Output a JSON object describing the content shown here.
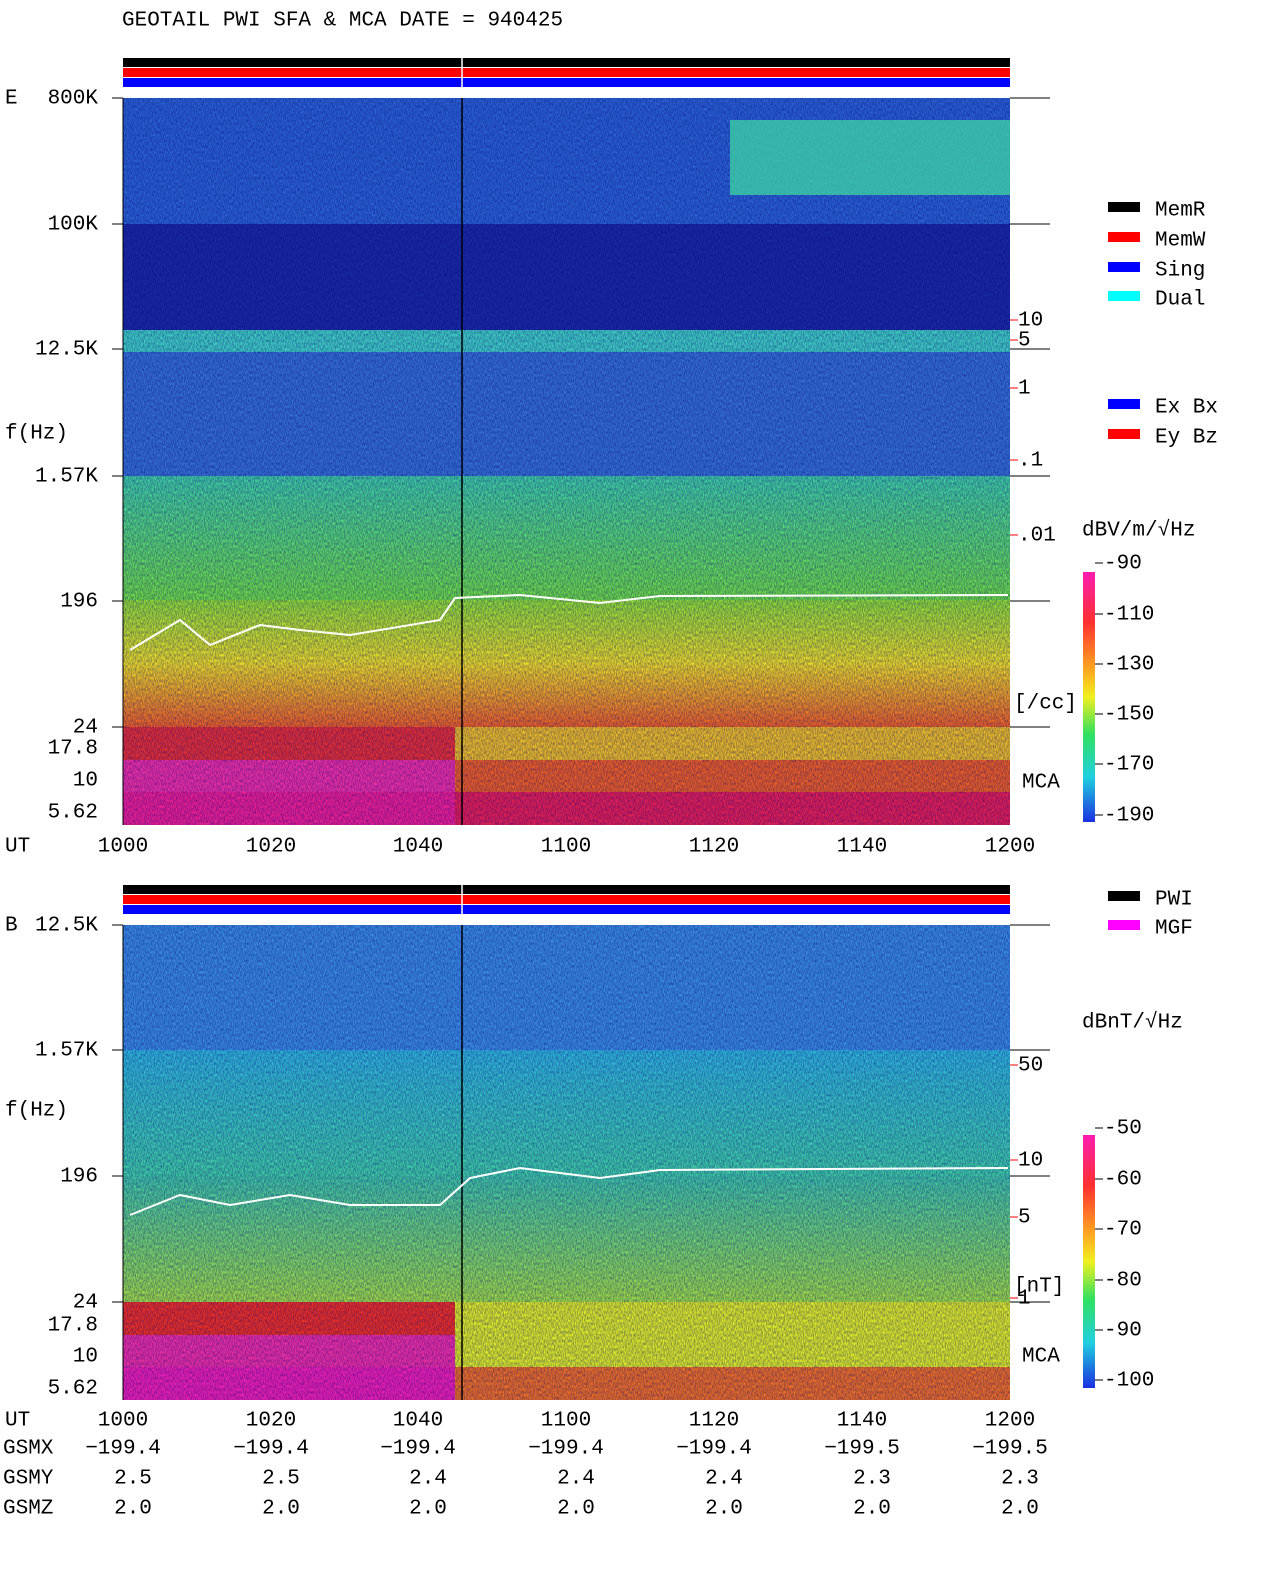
{
  "title": "GEOTAIL  PWI SFA & MCA   DATE = 940425",
  "panels": [
    {
      "label": "E",
      "y_label": "f(Hz)",
      "freq_ticks": [
        "800K",
        "100K",
        "12.5K",
        "1.57K",
        "196",
        "24",
        "17.8",
        "10",
        "5.62"
      ],
      "x_label": "UT",
      "time_ticks": [
        "1000",
        "1020",
        "1040",
        "1100",
        "1120",
        "1140",
        "1200"
      ],
      "right_ticks": [
        "10",
        "5",
        "1",
        ".1",
        ".01"
      ],
      "right_unit": "[/cc]",
      "mca_label": "MCA",
      "legend": [
        "MemR",
        "MemW",
        "Sing",
        "Dual"
      ],
      "legend2": [
        "Ex Bx",
        "Ey Bz"
      ],
      "colorbar_unit": "dBV/m/√Hz",
      "colorbar_ticks": [
        -90,
        -110,
        -130,
        -150,
        -170,
        -190
      ]
    },
    {
      "label": "B",
      "y_label": "f(Hz)",
      "freq_ticks": [
        "12.5K",
        "1.57K",
        "196",
        "24",
        "17.8",
        "10",
        "5.62"
      ],
      "x_label": "UT",
      "time_ticks": [
        "1000",
        "1020",
        "1040",
        "1100",
        "1120",
        "1140",
        "1200"
      ],
      "right_ticks": [
        "50",
        "10",
        "5",
        "1"
      ],
      "right_unit": "[nT]",
      "mca_label": "MCA",
      "legend": [
        "PWI",
        "MGF"
      ],
      "legend2": [],
      "colorbar_unit": "dBnT/√Hz",
      "colorbar_ticks": [
        -50,
        -60,
        -70,
        -80,
        -90,
        -100
      ]
    }
  ],
  "orbit": [
    {
      "label": "GSMX",
      "values": [
        "−199.4",
        "−199.4",
        "−199.4",
        "−199.4",
        "−199.4",
        "−199.5",
        "−199.5"
      ]
    },
    {
      "label": "GSMY",
      "values": [
        "2.5",
        "2.5",
        "2.4",
        "2.4",
        "2.4",
        "2.3",
        "2.3"
      ]
    },
    {
      "label": "GSMZ",
      "values": [
        "2.0",
        "2.0",
        "2.0",
        "2.0",
        "2.0",
        "2.0",
        "2.0"
      ]
    }
  ]
}
